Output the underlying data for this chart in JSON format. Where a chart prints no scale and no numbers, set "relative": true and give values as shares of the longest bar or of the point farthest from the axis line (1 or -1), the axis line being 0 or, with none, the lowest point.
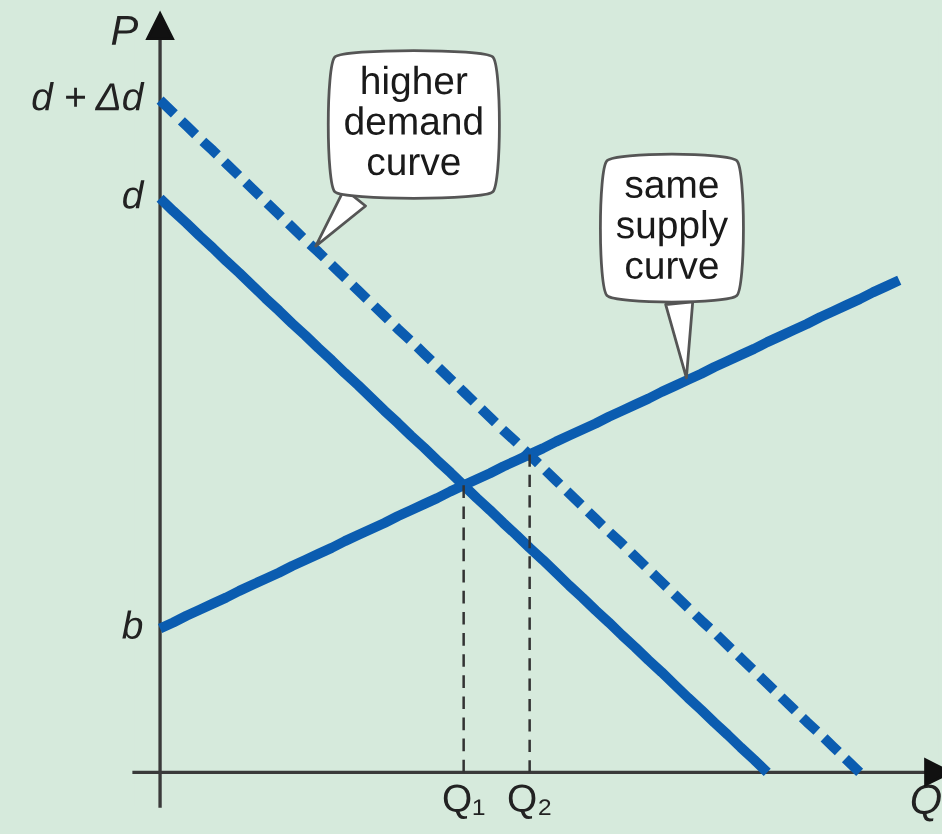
{
  "chart_data": {
    "type": "line",
    "relative": true,
    "xlabel": "Q",
    "ylabel": "P",
    "categories": [
      null,
      null,
      null,
      null,
      null,
      null,
      null,
      null,
      null,
      null,
      null,
      null,
      null,
      null,
      null,
      null,
      null,
      null,
      null,
      null,
      null,
      null,
      null,
      "Q₁",
      null,
      null,
      null,
      null,
      "Q₂",
      null,
      null,
      null,
      null,
      null,
      null,
      null,
      null,
      null,
      null,
      null,
      null,
      null,
      null,
      null,
      null,
      null,
      null,
      null,
      null,
      null,
      null,
      null,
      null,
      null,
      null,
      null,
      null
    ],
    "series": [
      {
        "name": "d",
        "color": "#0b5cb0",
        "line_style": "solid",
        "values": [
          0.854,
          0.835,
          0.817,
          0.798,
          0.78,
          0.761,
          0.743,
          0.724,
          0.705,
          0.687,
          0.668,
          0.65,
          0.631,
          0.613,
          0.594,
          0.576,
          0.557,
          0.538,
          0.52,
          0.501,
          0.483,
          0.464,
          0.446,
          0.427,
          0.408,
          0.39,
          0.371,
          0.353,
          0.334,
          0.316,
          0.297,
          0.278,
          0.26,
          0.241,
          0.223,
          0.204,
          0.186,
          0.167,
          0.149,
          0.13,
          0.111,
          0.093,
          0.074,
          0.056,
          0.037,
          0.019,
          0,
          null,
          null,
          null,
          null,
          null,
          null,
          null,
          null,
          null,
          null
        ]
      },
      {
        "name": "d + Δd",
        "color": "#0b5cb0",
        "line_style": "dashed",
        "values": [
          1,
          0.981,
          0.962,
          0.943,
          0.925,
          0.906,
          0.887,
          0.868,
          0.849,
          0.83,
          0.811,
          0.792,
          0.774,
          0.755,
          0.736,
          0.717,
          0.698,
          0.679,
          0.66,
          0.642,
          0.623,
          0.604,
          0.585,
          0.566,
          0.547,
          0.528,
          0.509,
          0.491,
          0.472,
          0.453,
          0.434,
          0.415,
          0.396,
          0.377,
          0.358,
          0.34,
          0.321,
          0.302,
          0.283,
          0.264,
          0.245,
          0.226,
          0.208,
          0.189,
          0.17,
          0.151,
          0.132,
          0.113,
          0.094,
          0.075,
          0.057,
          0.038,
          0.019,
          0,
          null,
          null,
          null
        ]
      },
      {
        "name": "b",
        "color": "#0b5cb0",
        "line_style": "solid",
        "values": [
          0.214,
          0.223,
          0.233,
          0.242,
          0.251,
          0.26,
          0.27,
          0.279,
          0.288,
          0.297,
          0.307,
          0.316,
          0.325,
          0.334,
          0.344,
          0.353,
          0.362,
          0.371,
          0.381,
          0.39,
          0.399,
          0.408,
          0.418,
          0.427,
          0.436,
          0.445,
          0.455,
          0.464,
          0.473,
          0.482,
          0.492,
          0.501,
          0.51,
          0.519,
          0.529,
          0.538,
          0.547,
          0.556,
          0.566,
          0.575,
          0.584,
          0.593,
          0.603,
          0.612,
          0.621,
          0.63,
          0.64,
          0.649,
          0.658,
          0.667,
          0.677,
          0.686,
          0.695,
          0.704,
          0.714,
          0.723,
          0.732
        ]
      },
      {
        "color": "#333333",
        "line_style": "dashed",
        "x": [
          "Q₁",
          "Q₁"
        ],
        "values": [
          0,
          0.427
        ]
      },
      {
        "color": "#333333",
        "line_style": "dashed",
        "x": [
          "Q₂",
          "Q₂"
        ],
        "values": [
          0,
          0.473
        ]
      }
    ],
    "annotations": [
      "higher\ndemand\ncurve",
      "same\nsupply\ncurve"
    ]
  }
}
